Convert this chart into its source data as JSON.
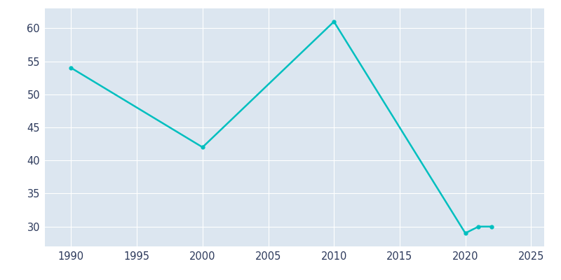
{
  "years": [
    1990,
    2000,
    2010,
    2020,
    2021,
    2022
  ],
  "population": [
    54,
    42,
    61,
    29,
    30,
    30
  ],
  "line_color": "#00BFBF",
  "marker": "o",
  "marker_size": 3.5,
  "line_width": 1.8,
  "background_color": "#ffffff",
  "plot_bg_color": "#dce6f0",
  "xlabel": "",
  "ylabel": "",
  "xlim": [
    1988,
    2026
  ],
  "ylim": [
    27,
    63
  ],
  "xticks": [
    1990,
    1995,
    2000,
    2005,
    2010,
    2015,
    2020,
    2025
  ],
  "yticks": [
    30,
    35,
    40,
    45,
    50,
    55,
    60
  ],
  "tick_color": "#2d3a5c",
  "tick_labelsize": 10.5,
  "grid_color": "#ffffff",
  "grid_linewidth": 0.8
}
